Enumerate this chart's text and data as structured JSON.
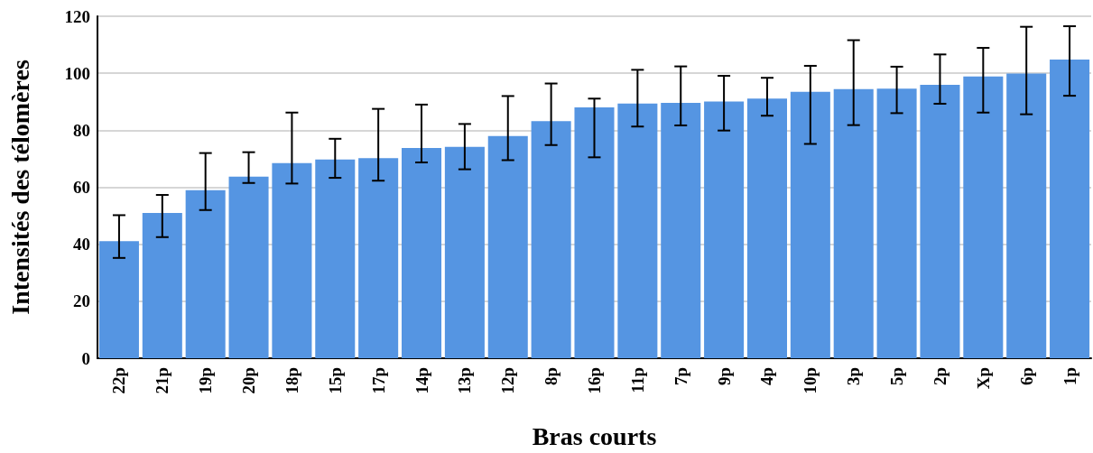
{
  "chart_data": {
    "type": "bar",
    "xlabel": "Bras courts",
    "ylabel": "Intensités des télomères",
    "categories": [
      "22p",
      "21p",
      "19p",
      "20p",
      "18p",
      "15p",
      "17p",
      "14p",
      "13p",
      "12p",
      "8p",
      "16p",
      "11p",
      "7p",
      "9p",
      "4p",
      "10p",
      "3p",
      "5p",
      "2p",
      "Xp",
      "6p",
      "1p"
    ],
    "values": [
      41.1,
      51,
      59,
      63.7,
      68.5,
      69.7,
      70.2,
      73.8,
      74.2,
      78,
      83.2,
      88,
      89.4,
      89.6,
      90.1,
      91.1,
      93.5,
      94.4,
      94.6,
      95.9,
      98.9,
      99.9,
      104.8
    ],
    "errors": [
      [
        35.2,
        50.2
      ],
      [
        42.5,
        57.3
      ],
      [
        52,
        72
      ],
      [
        61.5,
        72.3
      ],
      [
        61.3,
        86.2
      ],
      [
        63.3,
        77
      ],
      [
        62.3,
        87.5
      ],
      [
        68.7,
        89
      ],
      [
        66.3,
        82.2
      ],
      [
        69.5,
        92
      ],
      [
        74.8,
        96.4
      ],
      [
        70.5,
        91.1
      ],
      [
        81.3,
        101.2
      ],
      [
        81.7,
        102.4
      ],
      [
        79.9,
        99.1
      ],
      [
        85.1,
        98.4
      ],
      [
        75.2,
        102.6
      ],
      [
        81.8,
        111.6
      ],
      [
        86,
        102.3
      ],
      [
        89.3,
        106.6
      ],
      [
        86.2,
        108.9
      ],
      [
        85.6,
        116.3
      ],
      [
        92.1,
        116.5
      ]
    ],
    "color": "#5595e2",
    "ylim": [
      0,
      120
    ],
    "yticks": [
      0,
      20,
      40,
      60,
      80,
      100,
      120
    ],
    "grid": "y"
  }
}
